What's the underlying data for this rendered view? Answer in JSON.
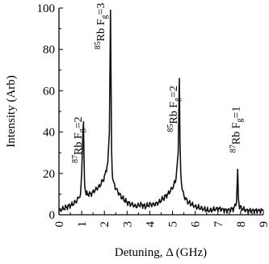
{
  "chart_data": {
    "type": "line",
    "title": "",
    "xlabel": "Detuning, Δ (GHz)",
    "ylabel": "Intensity (Arb)",
    "xlim": [
      0,
      9
    ],
    "ylim": [
      0,
      100
    ],
    "xticks": [
      "0",
      "1",
      "2",
      "3",
      "4",
      "5",
      "6",
      "7",
      "8",
      "9"
    ],
    "yticks": [
      "0",
      "20",
      "40",
      "60",
      "80",
      "100"
    ],
    "grid": false,
    "series": [
      {
        "x": [
          0,
          0.2,
          0.4,
          0.6,
          0.8,
          0.95,
          1.0,
          1.05,
          1.08,
          1.1,
          1.13,
          1.2,
          1.4,
          1.6,
          1.8,
          2.0,
          2.15,
          2.22,
          2.27,
          2.3,
          2.32,
          2.34,
          2.38,
          2.45,
          2.6,
          2.8,
          3.0,
          3.2,
          3.4,
          3.6,
          3.8,
          4.0,
          4.2,
          4.4,
          4.6,
          4.8,
          5.0,
          5.15,
          5.25,
          5.3,
          5.33,
          5.36,
          5.42,
          5.5,
          5.7,
          6.0,
          6.3,
          6.6,
          7.0,
          7.4,
          7.7,
          7.82,
          7.87,
          7.9,
          7.95,
          8.05,
          8.3,
          8.6,
          9.0
        ],
        "values": [
          2,
          3,
          4,
          5,
          7,
          10,
          20,
          38,
          45,
          30,
          14,
          10,
          10,
          12,
          14,
          18,
          25,
          40,
          99,
          55,
          30,
          22,
          17,
          14,
          11,
          8,
          6,
          5,
          4,
          5,
          4,
          5,
          5,
          6,
          8,
          10,
          13,
          17,
          30,
          66,
          35,
          20,
          13,
          9,
          6,
          4,
          3,
          2,
          3,
          2,
          3,
          6,
          22,
          8,
          4,
          3,
          2,
          2,
          2
        ]
      }
    ],
    "annotations": [
      {
        "label": "87Rb F",
        "sub": "g",
        "suffix": "=2",
        "x": 1.0,
        "y": 25
      },
      {
        "label": "85Rb F",
        "sub": "g",
        "suffix": "=3",
        "x": 2.0,
        "y": 80
      },
      {
        "label": "85Rb F",
        "sub": "g",
        "suffix": "=2",
        "x": 5.2,
        "y": 40
      },
      {
        "label": "87Rb F",
        "sub": "g",
        "suffix": "=1",
        "x": 7.95,
        "y": 30
      }
    ]
  }
}
